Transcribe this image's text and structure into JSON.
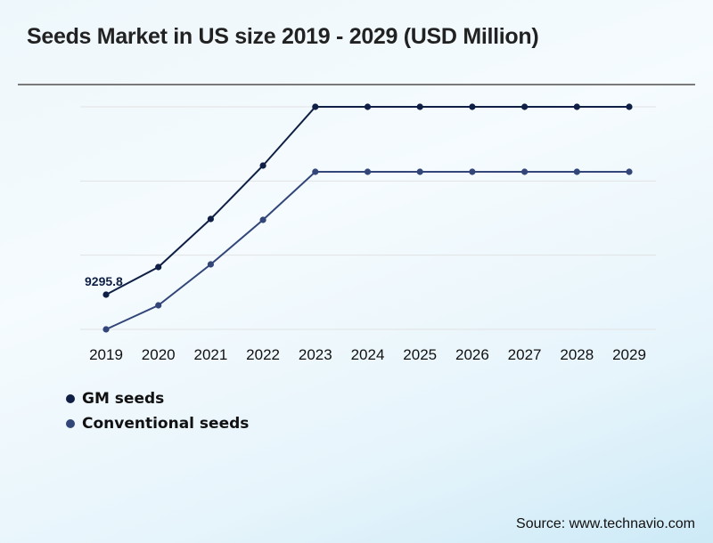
{
  "header": {
    "title": "Seeds Market in US size 2019 - 2029 (USD Million)"
  },
  "source": "Source: www.technavio.com",
  "chart_data": {
    "type": "line",
    "title": "Seeds Market in US size 2019 - 2029 (USD Million)",
    "xlabel": "",
    "ylabel": "",
    "categories": [
      "2019",
      "2020",
      "2021",
      "2022",
      "2023",
      "2024",
      "2025",
      "2026",
      "2027",
      "2028",
      "2029"
    ],
    "series": [
      {
        "name": "GM seeds",
        "color": "#0f1f45",
        "values": [
          9295.8,
          10326,
          12120,
          14114,
          16307,
          16307,
          16307,
          16307,
          16307,
          16307,
          16307
        ]
      },
      {
        "name": "Conventional seeds",
        "color": "#33467a",
        "values": [
          8000,
          8897,
          10426,
          12087,
          13881,
          13881,
          13881,
          13881,
          13881,
          13881,
          13881
        ]
      }
    ],
    "data_labels": [
      {
        "series": "GM seeds",
        "category": "2019",
        "text": "9295.8"
      }
    ],
    "ylim": [
      8000,
      16307
    ],
    "gridlines": 4,
    "grid": true,
    "y_axis_labels_shown": false,
    "legend_position": "bottom-left"
  }
}
